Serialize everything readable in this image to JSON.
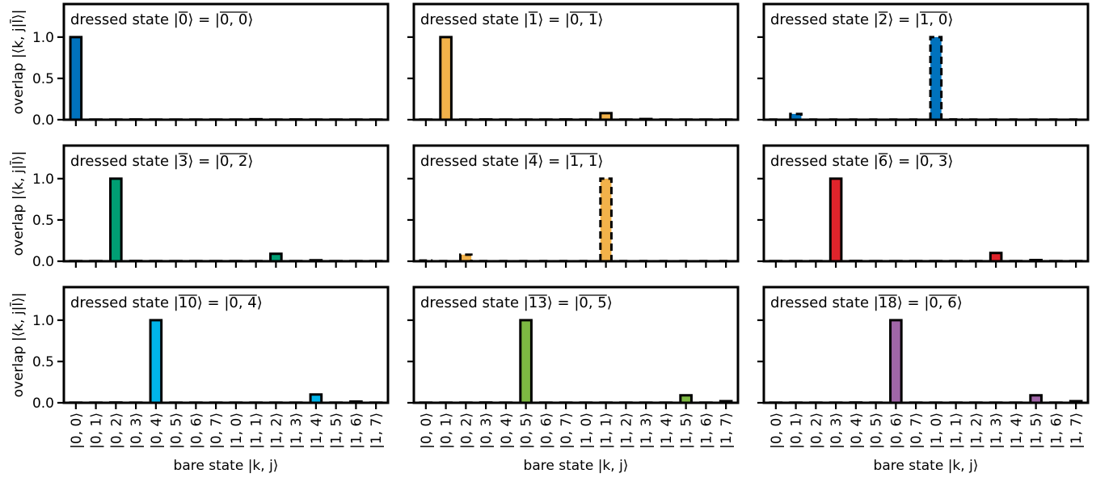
{
  "figure": {
    "ylabel": "overlap |⟨k, j|l̄⟩|",
    "xlabel": "bare state |k, j⟩"
  },
  "chart_data": [
    {
      "type": "bar",
      "title": "dressed state |0̄⟩ = |0,0̄⟩",
      "label_parts": [
        "dressed state |",
        "0",
        "⟩ = |",
        "0, 0",
        "⟩"
      ],
      "categories": [
        "|0, 0⟩",
        "|0, 1⟩",
        "|0, 2⟩",
        "|0, 3⟩",
        "|0, 4⟩",
        "|0, 5⟩",
        "|0, 6⟩",
        "|0, 7⟩",
        "|1, 0⟩",
        "|1, 1⟩",
        "|1, 2⟩",
        "|1, 3⟩",
        "|1, 4⟩",
        "|1, 5⟩",
        "|1, 6⟩",
        "|1, 7⟩"
      ],
      "values": [
        1.0,
        0.003,
        0.002,
        0.004,
        0.003,
        0.002,
        0.003,
        0.002,
        0.002,
        0.006,
        0.002,
        0.004,
        0.002,
        0.002,
        0.002,
        0.002
      ],
      "color": "#0072BD",
      "dashed": false,
      "ylim": [
        0,
        1.4
      ],
      "yticks": [
        0.0,
        0.5,
        1.0
      ]
    },
    {
      "type": "bar",
      "title": "dressed state |1̄⟩ = |0,1̄⟩",
      "label_parts": [
        "dressed state |",
        "1",
        "⟩ = |",
        "0, 1",
        "⟩"
      ],
      "categories": [
        "|0, 0⟩",
        "|0, 1⟩",
        "|0, 2⟩",
        "|0, 3⟩",
        "|0, 4⟩",
        "|0, 5⟩",
        "|0, 6⟩",
        "|0, 7⟩",
        "|1, 0⟩",
        "|1, 1⟩",
        "|1, 2⟩",
        "|1, 3⟩",
        "|1, 4⟩",
        "|1, 5⟩",
        "|1, 6⟩",
        "|1, 7⟩"
      ],
      "values": [
        0.002,
        1.0,
        0.002,
        0.004,
        0.002,
        0.002,
        0.002,
        0.004,
        0.003,
        0.08,
        0.002,
        0.008,
        0.002,
        0.003,
        0.002,
        0.002
      ],
      "color": "#F2B24A",
      "dashed": false,
      "ylim": [
        0,
        1.4
      ],
      "yticks": [
        0.0,
        0.5,
        1.0
      ]
    },
    {
      "type": "bar",
      "title": "dressed state |2̄⟩ = |1,0̄⟩",
      "label_parts": [
        "dressed state |",
        "2",
        "⟩ = |",
        "1, 0",
        "⟩"
      ],
      "categories": [
        "|0, 0⟩",
        "|0, 1⟩",
        "|0, 2⟩",
        "|0, 3⟩",
        "|0, 4⟩",
        "|0, 5⟩",
        "|0, 6⟩",
        "|0, 7⟩",
        "|1, 0⟩",
        "|1, 1⟩",
        "|1, 2⟩",
        "|1, 3⟩",
        "|1, 4⟩",
        "|1, 5⟩",
        "|1, 6⟩",
        "|1, 7⟩"
      ],
      "values": [
        0.002,
        0.07,
        0.002,
        0.002,
        0.002,
        0.002,
        0.002,
        0.002,
        1.0,
        0.004,
        0.002,
        0.002,
        0.003,
        0.002,
        0.002,
        0.002
      ],
      "color": "#0072BD",
      "dashed": true,
      "ylim": [
        0,
        1.4
      ],
      "yticks": [
        0.0,
        0.5,
        1.0
      ]
    },
    {
      "type": "bar",
      "title": "dressed state |3̄⟩ = |0,2̄⟩",
      "label_parts": [
        "dressed state |",
        "3",
        "⟩ = |",
        "0, 2",
        "⟩"
      ],
      "categories": [
        "|0, 0⟩",
        "|0, 1⟩",
        "|0, 2⟩",
        "|0, 3⟩",
        "|0, 4⟩",
        "|0, 5⟩",
        "|0, 6⟩",
        "|0, 7⟩",
        "|1, 0⟩",
        "|1, 1⟩",
        "|1, 2⟩",
        "|1, 3⟩",
        "|1, 4⟩",
        "|1, 5⟩",
        "|1, 6⟩",
        "|1, 7⟩"
      ],
      "values": [
        0.002,
        0.002,
        1.0,
        0.004,
        0.003,
        0.002,
        0.003,
        0.002,
        0.002,
        0.002,
        0.09,
        0.002,
        0.012,
        0.002,
        0.002,
        0.002
      ],
      "color": "#009E73",
      "dashed": false,
      "ylim": [
        0,
        1.4
      ],
      "yticks": [
        0.0,
        0.5,
        1.0
      ]
    },
    {
      "type": "bar",
      "title": "dressed state |4̄⟩ = |1,1̄⟩",
      "label_parts": [
        "dressed state |",
        "4",
        "⟩ = |",
        "1, 1",
        "⟩"
      ],
      "categories": [
        "|0, 0⟩",
        "|0, 1⟩",
        "|0, 2⟩",
        "|0, 3⟩",
        "|0, 4⟩",
        "|0, 5⟩",
        "|0, 6⟩",
        "|0, 7⟩",
        "|1, 0⟩",
        "|1, 1⟩",
        "|1, 2⟩",
        "|1, 3⟩",
        "|1, 4⟩",
        "|1, 5⟩",
        "|1, 6⟩",
        "|1, 7⟩"
      ],
      "values": [
        0.008,
        0.002,
        0.08,
        0.002,
        0.002,
        0.002,
        0.002,
        0.002,
        0.002,
        1.0,
        0.003,
        0.002,
        0.002,
        0.002,
        0.002,
        0.002
      ],
      "color": "#F2B24A",
      "dashed": true,
      "ylim": [
        0,
        1.4
      ],
      "yticks": [
        0.0,
        0.5,
        1.0
      ]
    },
    {
      "type": "bar",
      "title": "dressed state |6̄⟩ = |0,3̄⟩",
      "label_parts": [
        "dressed state |",
        "6",
        "⟩ = |",
        "0, 3",
        "⟩"
      ],
      "categories": [
        "|0, 0⟩",
        "|0, 1⟩",
        "|0, 2⟩",
        "|0, 3⟩",
        "|0, 4⟩",
        "|0, 5⟩",
        "|0, 6⟩",
        "|0, 7⟩",
        "|1, 0⟩",
        "|1, 1⟩",
        "|1, 2⟩",
        "|1, 3⟩",
        "|1, 4⟩",
        "|1, 5⟩",
        "|1, 6⟩",
        "|1, 7⟩"
      ],
      "values": [
        0.002,
        0.002,
        0.002,
        1.0,
        0.004,
        0.002,
        0.003,
        0.002,
        0.002,
        0.002,
        0.002,
        0.1,
        0.002,
        0.015,
        0.002,
        0.002
      ],
      "color": "#E0242B",
      "dashed": false,
      "ylim": [
        0,
        1.4
      ],
      "yticks": [
        0.0,
        0.5,
        1.0
      ]
    },
    {
      "type": "bar",
      "title": "dressed state |10̄⟩ = |0,4̄⟩",
      "label_parts": [
        "dressed state |",
        "10",
        "⟩ = |",
        "0, 4",
        "⟩"
      ],
      "categories": [
        "|0, 0⟩",
        "|0, 1⟩",
        "|0, 2⟩",
        "|0, 3⟩",
        "|0, 4⟩",
        "|0, 5⟩",
        "|0, 6⟩",
        "|0, 7⟩",
        "|1, 0⟩",
        "|1, 1⟩",
        "|1, 2⟩",
        "|1, 3⟩",
        "|1, 4⟩",
        "|1, 5⟩",
        "|1, 6⟩",
        "|1, 7⟩"
      ],
      "values": [
        0.002,
        0.002,
        0.004,
        0.002,
        1.0,
        0.003,
        0.002,
        0.002,
        0.002,
        0.002,
        0.002,
        0.002,
        0.1,
        0.002,
        0.015,
        0.002
      ],
      "color": "#00B4EA",
      "dashed": false,
      "ylim": [
        0,
        1.4
      ],
      "yticks": [
        0.0,
        0.5,
        1.0
      ]
    },
    {
      "type": "bar",
      "title": "dressed state |13̄⟩ = |0,5̄⟩",
      "label_parts": [
        "dressed state |",
        "13",
        "⟩ = |",
        "0, 5",
        "⟩"
      ],
      "categories": [
        "|0, 0⟩",
        "|0, 1⟩",
        "|0, 2⟩",
        "|0, 3⟩",
        "|0, 4⟩",
        "|0, 5⟩",
        "|0, 6⟩",
        "|0, 7⟩",
        "|1, 0⟩",
        "|1, 1⟩",
        "|1, 2⟩",
        "|1, 3⟩",
        "|1, 4⟩",
        "|1, 5⟩",
        "|1, 6⟩",
        "|1, 7⟩"
      ],
      "values": [
        0.002,
        0.002,
        0.002,
        0.004,
        0.002,
        1.0,
        0.003,
        0.002,
        0.002,
        0.002,
        0.002,
        0.002,
        0.002,
        0.09,
        0.002,
        0.02
      ],
      "color": "#7DB942",
      "dashed": false,
      "ylim": [
        0,
        1.4
      ],
      "yticks": [
        0.0,
        0.5,
        1.0
      ]
    },
    {
      "type": "bar",
      "title": "dressed state |18̄⟩ = |0,6̄⟩",
      "label_parts": [
        "dressed state |",
        "18",
        "⟩ = |",
        "0, 6",
        "⟩"
      ],
      "categories": [
        "|0, 0⟩",
        "|0, 1⟩",
        "|0, 2⟩",
        "|0, 3⟩",
        "|0, 4⟩",
        "|0, 5⟩",
        "|0, 6⟩",
        "|0, 7⟩",
        "|1, 0⟩",
        "|1, 1⟩",
        "|1, 2⟩",
        "|1, 3⟩",
        "|1, 4⟩",
        "|1, 5⟩",
        "|1, 6⟩",
        "|1, 7⟩"
      ],
      "values": [
        0.002,
        0.002,
        0.002,
        0.002,
        0.004,
        0.002,
        1.0,
        0.002,
        0.002,
        0.002,
        0.002,
        0.002,
        0.002,
        0.09,
        0.002,
        0.02
      ],
      "color": "#A066A8",
      "dashed": false,
      "ylim": [
        0,
        1.4
      ],
      "yticks": [
        0.0,
        0.5,
        1.0
      ]
    }
  ]
}
